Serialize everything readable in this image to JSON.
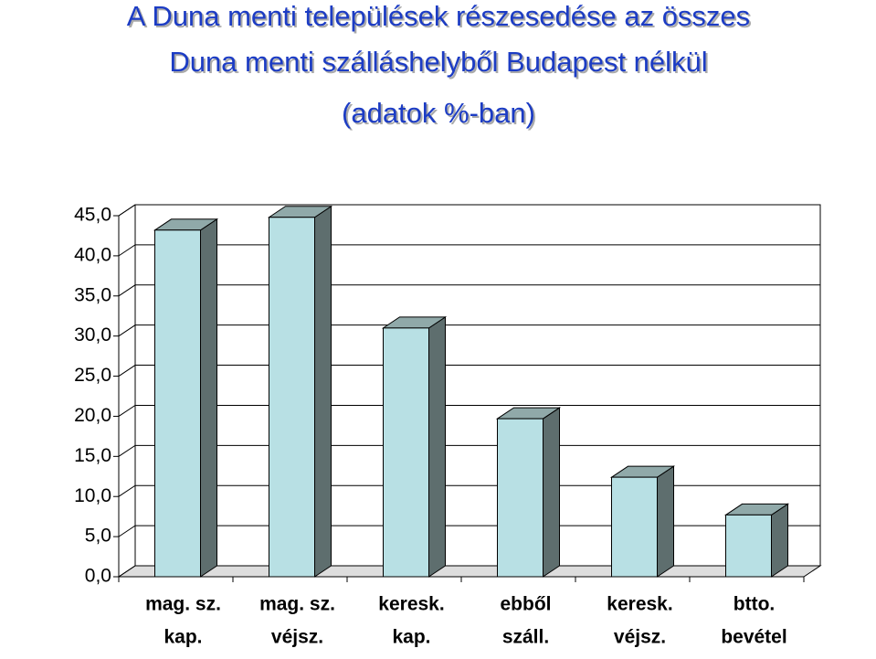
{
  "chart_data": {
    "type": "bar3d",
    "title": [
      "A Duna menti települések részesedése az összes",
      "Duna menti szálláshelyből Budapest nélkül",
      "(adatok %-ban)"
    ],
    "categories": [
      [
        "mag. sz.",
        "kap."
      ],
      [
        "mag. sz.",
        "véjsz."
      ],
      [
        "keresk.",
        "kap."
      ],
      [
        "ebből",
        "száll."
      ],
      [
        "keresk.",
        "véjsz."
      ],
      [
        "btto.",
        "bevétel"
      ]
    ],
    "values": [
      43.2,
      44.8,
      31.0,
      19.7,
      12.4,
      7.7
    ],
    "color": "#b8e0e4",
    "side_color": "#5e6e6e",
    "top_color": "#90a9a9",
    "ylim": [
      0,
      45
    ],
    "yticks": [
      {
        "value": 0,
        "label": "0,0"
      },
      {
        "value": 5,
        "label": "5,0"
      },
      {
        "value": 10,
        "label": "10,0"
      },
      {
        "value": 15,
        "label": "15,0"
      },
      {
        "value": 20,
        "label": "20,0"
      },
      {
        "value": 25,
        "label": "25,0"
      },
      {
        "value": 30,
        "label": "30,0"
      },
      {
        "value": 35,
        "label": "35,0"
      },
      {
        "value": 40,
        "label": "40,0"
      },
      {
        "value": 45,
        "label": "45,0"
      }
    ],
    "grid": true
  }
}
